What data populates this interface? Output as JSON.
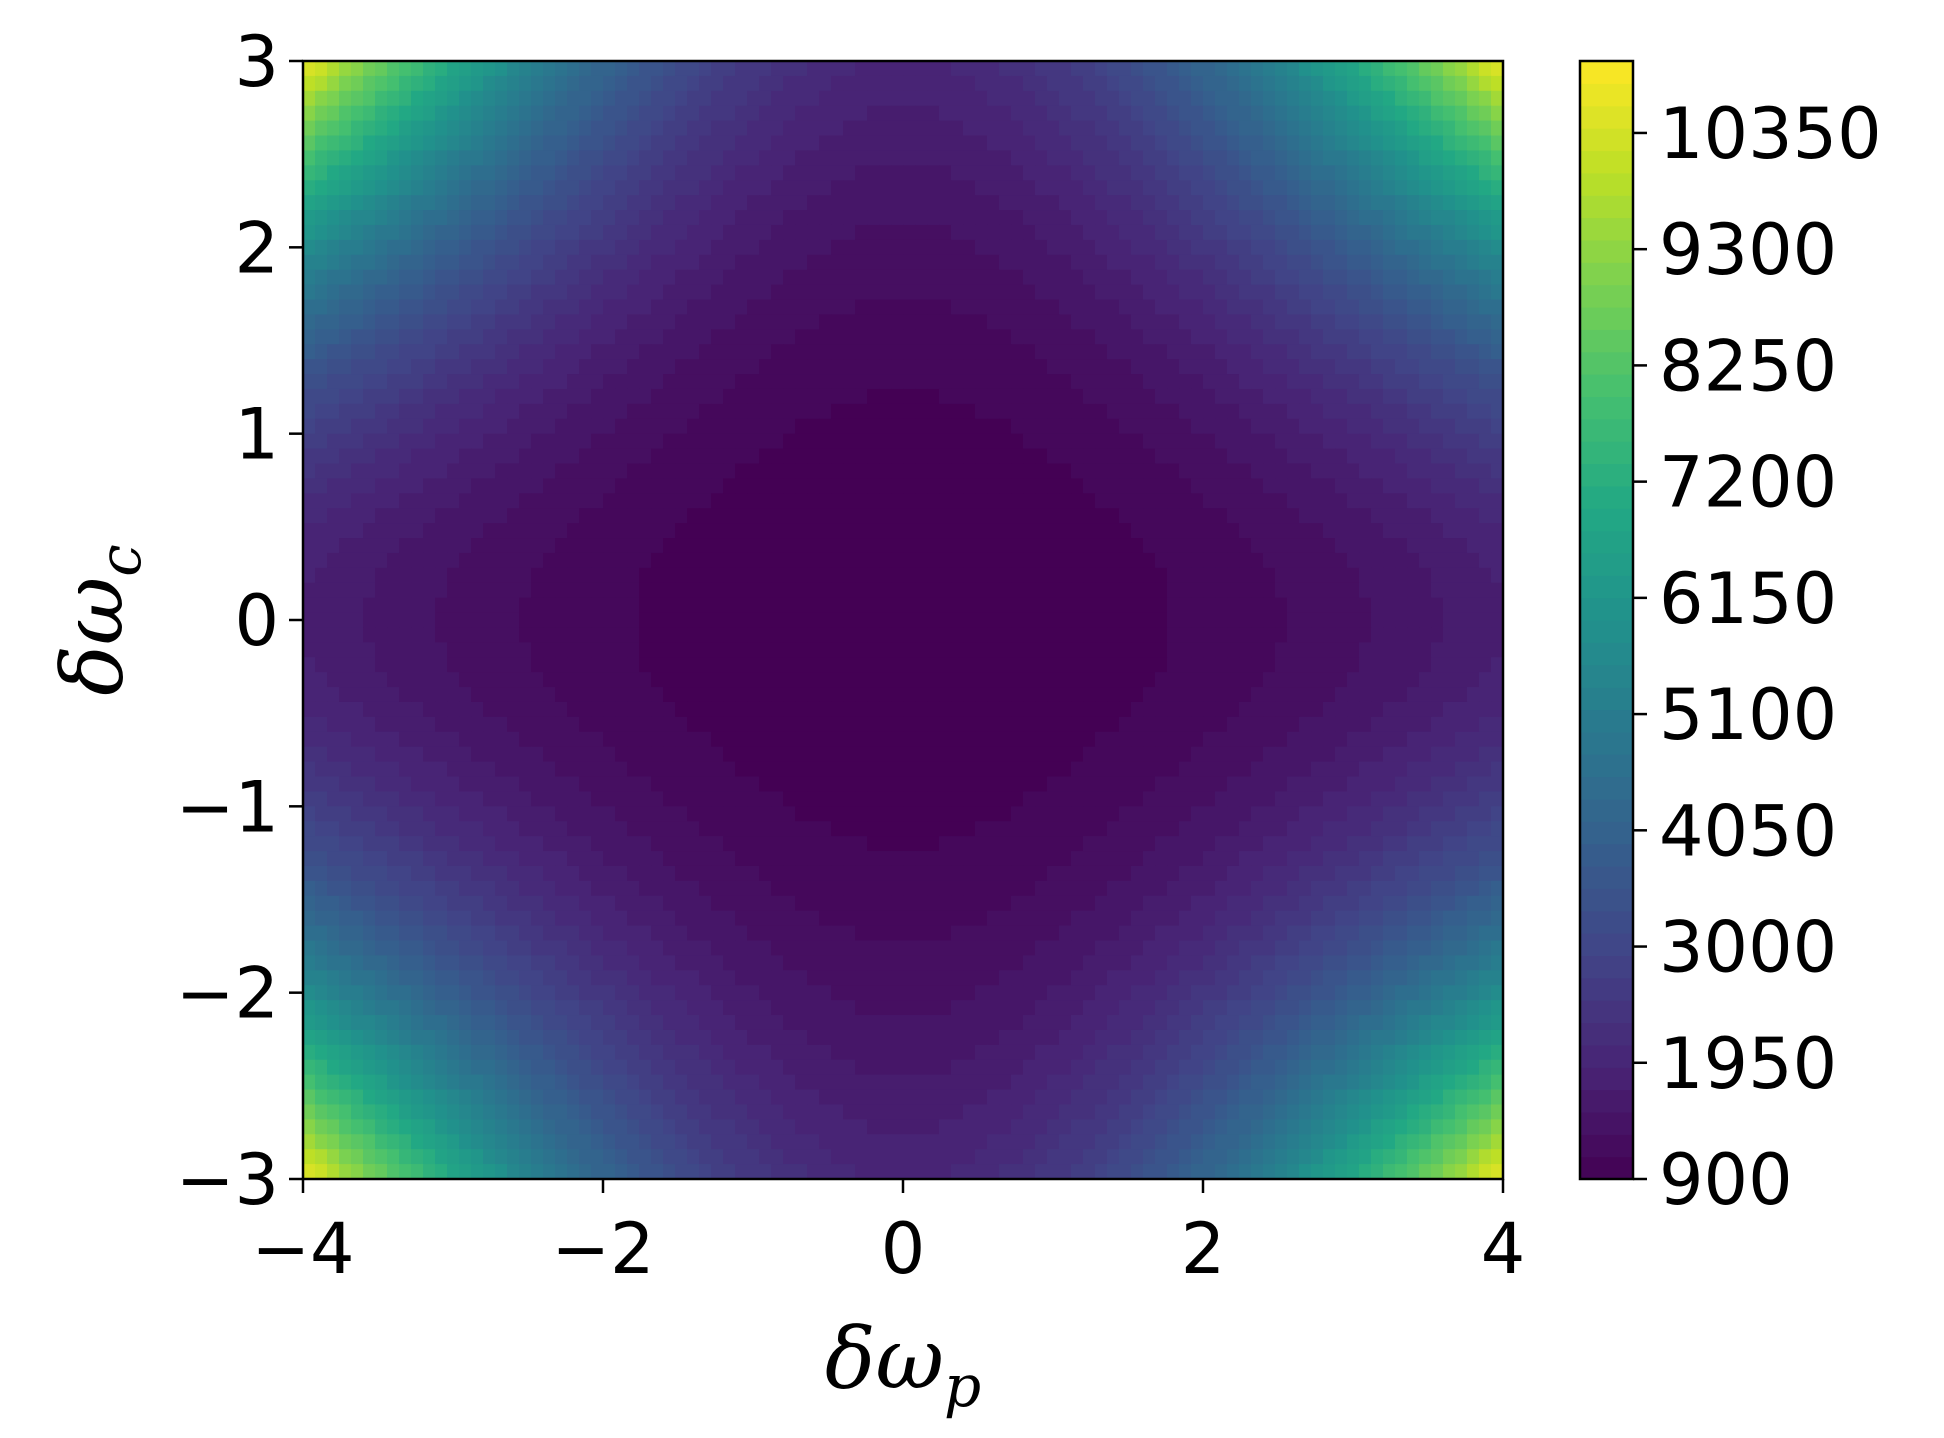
{
  "chart_data": {
    "type": "heatmap",
    "title": "",
    "xlabel": "δω",
    "xlabel_sub": "p",
    "ylabel": "δω",
    "ylabel_sub": "c",
    "xlim": [
      -4,
      4
    ],
    "ylim": [
      -3,
      3
    ],
    "x_ticks": [
      -4,
      -2,
      0,
      2,
      4
    ],
    "x_tick_labels": [
      "−4",
      "−2",
      "0",
      "2",
      "4"
    ],
    "y_ticks": [
      -3,
      -2,
      -1,
      0,
      1,
      2,
      3
    ],
    "y_tick_labels": [
      "−3",
      "−2",
      "−1",
      "0",
      "1",
      "2",
      "3"
    ],
    "colormap": "viridis",
    "colorbar": {
      "min": 900,
      "max": 11000,
      "ticks": [
        900,
        1950,
        3000,
        4050,
        5100,
        6150,
        7200,
        8250,
        9300,
        10350
      ],
      "tick_labels": [
        "900",
        "1950",
        "3000",
        "4050",
        "5100",
        "6150",
        "7200",
        "8250",
        "9300",
        "10350"
      ]
    },
    "levels": 50,
    "sample_values": [
      {
        "x": 0,
        "y": 0,
        "value": 900
      },
      {
        "x": -4,
        "y": 0,
        "value": 1900
      },
      {
        "x": 4,
        "y": 0,
        "value": 1900
      },
      {
        "x": 0,
        "y": 3,
        "value": 2100
      },
      {
        "x": 0,
        "y": -3,
        "value": 2100
      },
      {
        "x": -4,
        "y": 3,
        "value": 11000
      },
      {
        "x": 4,
        "y": 3,
        "value": 11000
      },
      {
        "x": -4,
        "y": -3,
        "value": 11000
      },
      {
        "x": 4,
        "y": -3,
        "value": 11000
      },
      {
        "x": 3,
        "y": 2.5,
        "value": 7500
      }
    ]
  }
}
